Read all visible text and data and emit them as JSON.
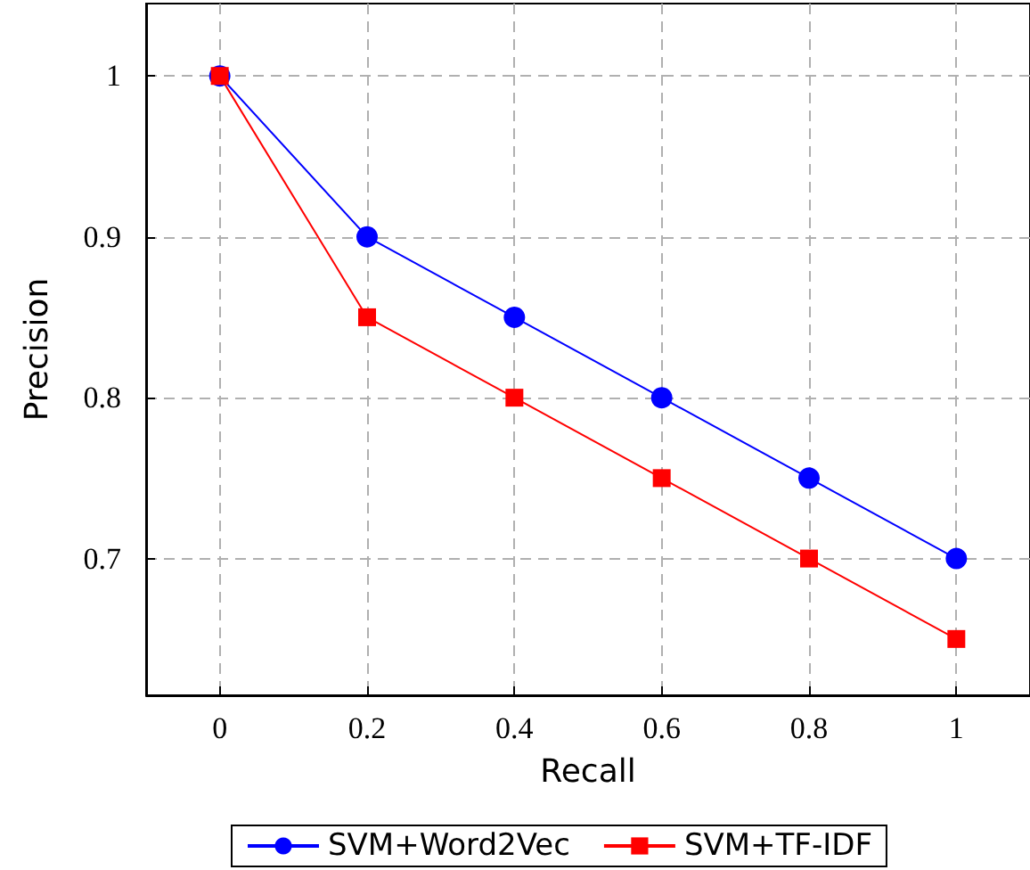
{
  "chart_data": {
    "type": "line",
    "xlabel": "Recall",
    "ylabel": "Precision",
    "x": [
      0,
      0.2,
      0.4,
      0.6,
      0.8,
      1
    ],
    "series": [
      {
        "name": "SVM+Word2Vec",
        "color": "#0000ff",
        "marker": "circle",
        "values": [
          1,
          0.9,
          0.85,
          0.8,
          0.75,
          0.7
        ]
      },
      {
        "name": "SVM+TF-IDF",
        "color": "#ff0000",
        "marker": "square",
        "values": [
          1,
          0.85,
          0.8,
          0.75,
          0.7,
          0.65
        ]
      }
    ],
    "xlim": [
      -0.1,
      1.1
    ],
    "xticks": [
      0,
      0.2,
      0.4,
      0.6,
      0.8,
      1
    ],
    "ylim": [
      0.615,
      1.045
    ],
    "yticks": [
      0.7,
      0.8,
      0.9,
      1
    ],
    "grid": true,
    "legend": "bottom",
    "line_style": "solid"
  }
}
